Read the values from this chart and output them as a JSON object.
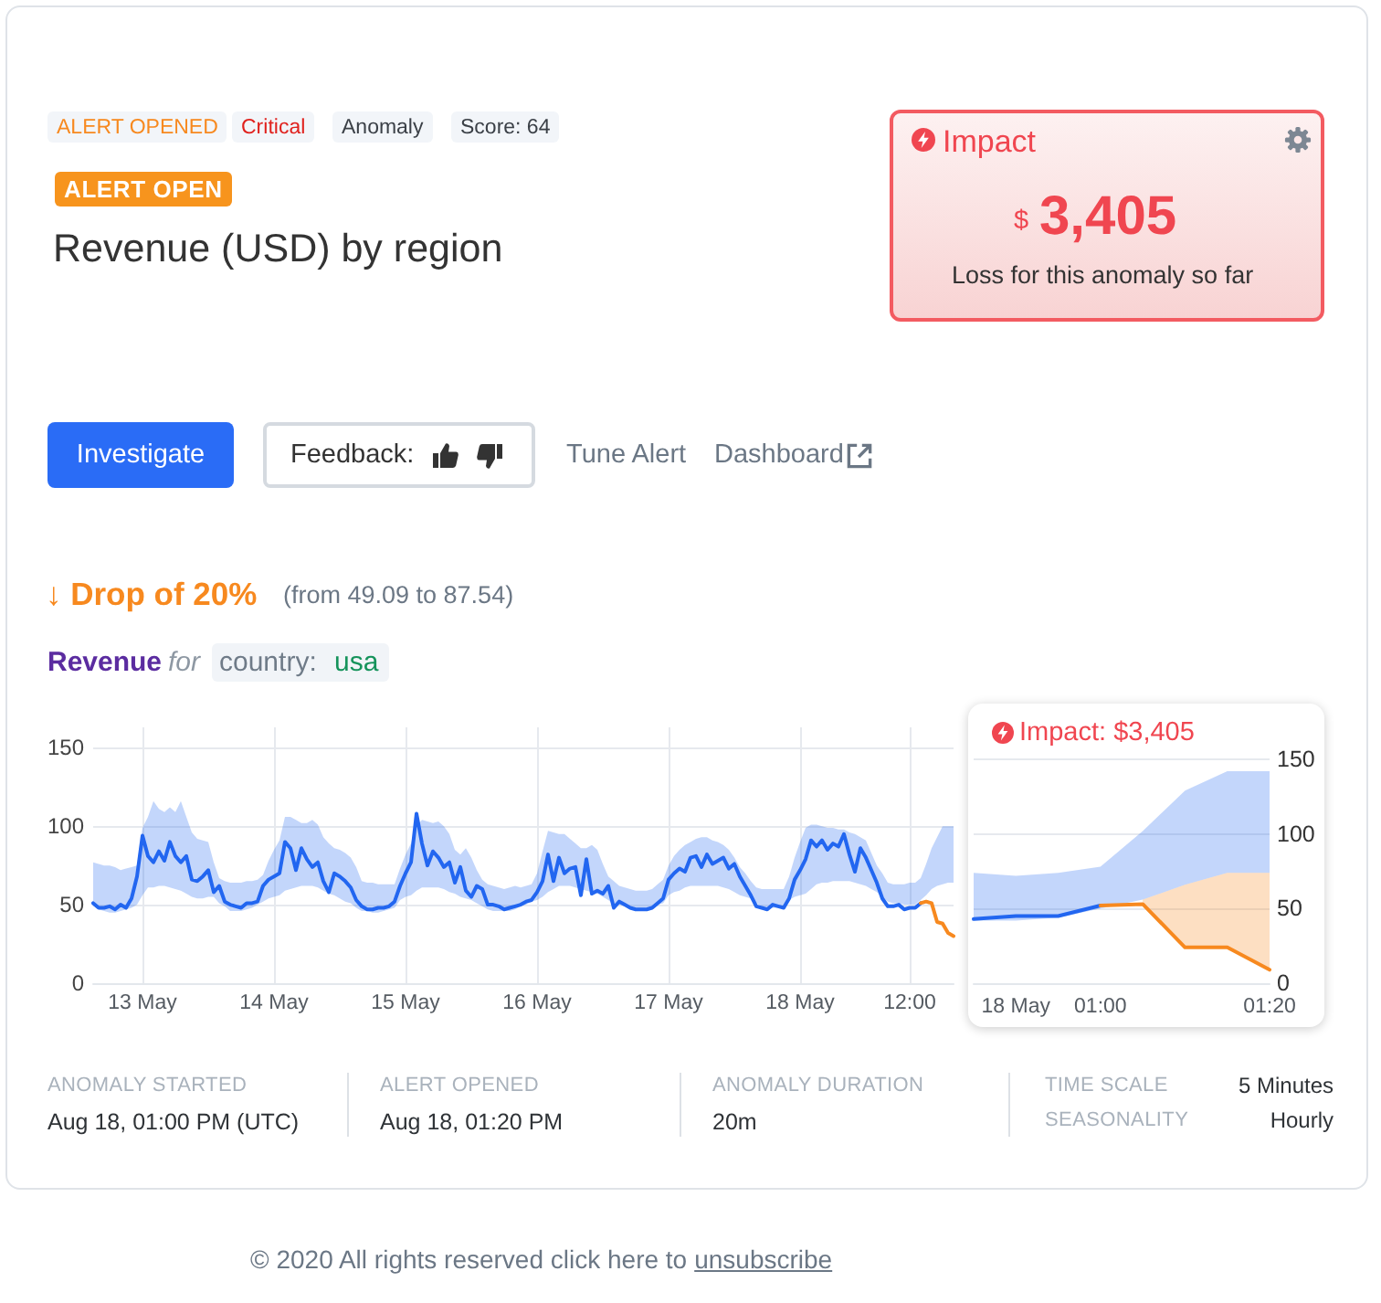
{
  "chart_data": [
    {
      "type": "line",
      "title": "Revenue (USD) by region",
      "annotations": [
        "ALERT OPENED",
        "Critical",
        "Anomaly",
        "Score: 64",
        "ALERT OPEN",
        "Impact",
        "$",
        "3,405",
        "Loss for this anomaly so far",
        "Investigate",
        "Feedback:",
        "Tune Alert",
        "Dashboard",
        "↓ Drop of 20%",
        "(from 49.09 to 87.54)",
        "Revenue",
        "for",
        "country:",
        "usa",
        "ANOMALY STARTED",
        "Aug 18, 01:00 PM (UTC)",
        "ALERT OPENED",
        "Aug 18, 01:20 PM",
        "ANOMALY DURATION",
        "20m",
        "TIME SCALE",
        "5 Minutes",
        "SEASONALITY",
        "Hourly",
        "© 2020 All rights reserved click here to",
        "unsubscribe"
      ],
      "categories": [
        null,
        null,
        null,
        null,
        null,
        null,
        null,
        null,
        null,
        "13 May",
        null,
        null,
        null,
        null,
        null,
        null,
        null,
        null,
        null,
        null,
        null,
        null,
        null,
        null,
        null,
        null,
        null,
        null,
        null,
        null,
        null,
        null,
        null,
        "14 May",
        null,
        null,
        null,
        null,
        null,
        null,
        null,
        null,
        null,
        null,
        null,
        null,
        null,
        null,
        null,
        null,
        null,
        null,
        null,
        null,
        null,
        null,
        null,
        "15 May",
        null,
        null,
        null,
        null,
        null,
        null,
        null,
        null,
        null,
        null,
        null,
        null,
        null,
        null,
        null,
        null,
        null,
        null,
        null,
        null,
        null,
        null,
        null,
        "16 May",
        null,
        null,
        null,
        null,
        null,
        null,
        null,
        null,
        null,
        null,
        null,
        null,
        null,
        null,
        null,
        null,
        null,
        null,
        null,
        null,
        null,
        null,
        null,
        "17 May",
        null,
        null,
        null,
        null,
        null,
        null,
        null,
        null,
        null,
        null,
        null,
        null,
        null,
        null,
        null,
        null,
        null,
        null,
        null,
        null,
        null,
        null,
        null,
        "18 May",
        null,
        null,
        null,
        null,
        null,
        null,
        null,
        null,
        null,
        null,
        null,
        null,
        null,
        null,
        null,
        null,
        null,
        null,
        null,
        "12:00",
        null,
        null,
        null,
        null,
        null,
        null,
        null,
        null
      ],
      "ylim": [
        0,
        163
      ],
      "yticks": [
        0,
        50,
        100,
        150
      ],
      "grid": true,
      "series": [
        {
          "color": "#2266f0",
          "values": [
            51,
            48,
            48,
            49,
            47,
            50,
            48,
            54,
            68,
            94,
            81,
            77,
            84,
            78,
            90,
            81,
            77,
            81,
            66,
            65,
            68,
            72,
            58,
            62,
            52,
            50,
            49,
            48,
            51,
            51,
            52,
            62,
            66,
            68,
            70,
            90,
            86,
            72,
            86,
            79,
            74,
            77,
            65,
            58,
            70,
            68,
            65,
            61,
            53,
            49,
            47,
            47,
            48,
            48,
            49,
            52,
            62,
            70,
            77,
            108,
            89,
            75,
            84,
            80,
            74,
            77,
            64,
            74,
            59,
            55,
            62,
            60,
            50,
            50,
            49,
            47,
            48,
            49,
            50,
            52,
            53,
            58,
            65,
            82,
            65,
            80,
            70,
            73,
            74,
            56,
            79,
            57,
            59,
            57,
            62,
            48,
            52,
            50,
            48,
            47,
            47,
            47,
            48,
            51,
            54,
            66,
            70,
            73,
            71,
            80,
            81,
            74,
            82,
            76,
            78,
            80,
            73,
            76,
            68,
            62,
            56,
            49,
            48,
            47,
            50,
            49,
            48,
            54,
            66,
            72,
            79,
            91,
            87,
            91,
            85,
            89,
            87,
            95,
            82,
            71,
            86,
            80,
            72,
            64,
            54,
            49,
            49,
            50,
            47,
            48,
            48,
            51,
            null,
            null,
            null,
            null,
            null,
            null
          ],
          "lower": [
            50,
            47,
            46,
            45,
            45,
            46,
            47,
            48,
            50,
            56,
            61,
            61,
            62,
            62,
            61,
            60,
            59,
            57,
            55,
            54,
            54,
            55,
            55,
            51,
            49,
            46,
            46,
            46,
            47,
            48,
            50,
            52,
            54,
            55,
            56,
            59,
            60,
            61,
            62,
            62,
            62,
            61,
            59,
            57,
            56,
            54,
            52,
            51,
            48,
            46,
            46,
            45,
            45,
            46,
            47,
            48,
            53,
            55,
            56,
            59,
            61,
            61,
            61,
            61,
            60,
            58,
            57,
            55,
            54,
            53,
            51,
            49,
            47,
            46,
            46,
            46,
            46,
            47,
            49,
            50,
            52,
            53,
            55,
            58,
            60,
            62,
            62,
            62,
            61,
            60,
            59,
            58,
            57,
            55,
            53,
            50,
            50,
            49,
            49,
            48,
            47,
            48,
            48,
            50,
            51,
            56,
            58,
            59,
            61,
            62,
            62,
            62,
            62,
            62,
            62,
            61,
            60,
            58,
            56,
            55,
            54,
            51,
            49,
            48,
            48,
            48,
            49,
            53,
            55,
            56,
            57,
            60,
            63,
            64,
            64,
            65,
            65,
            65,
            65,
            64,
            63,
            62,
            60,
            58,
            55,
            52,
            51,
            51,
            50,
            50,
            50,
            53,
            56,
            60,
            62,
            63,
            64,
            64
          ],
          "upper": [
            77,
            76,
            75,
            75,
            74,
            72,
            73,
            74,
            75,
            99,
            106,
            116,
            111,
            109,
            112,
            109,
            116,
            106,
            96,
            92,
            91,
            90,
            77,
            67,
            65,
            64,
            64,
            64,
            65,
            65,
            66,
            69,
            78,
            85,
            91,
            106,
            106,
            104,
            102,
            102,
            104,
            101,
            93,
            89,
            86,
            85,
            83,
            80,
            74,
            65,
            64,
            64,
            63,
            63,
            63,
            63,
            73,
            82,
            89,
            100,
            104,
            103,
            102,
            103,
            100,
            95,
            85,
            82,
            86,
            80,
            72,
            66,
            63,
            62,
            61,
            60,
            61,
            62,
            61,
            62,
            63,
            70,
            84,
            97,
            96,
            95,
            95,
            92,
            89,
            86,
            86,
            88,
            85,
            76,
            68,
            65,
            62,
            61,
            60,
            59,
            59,
            59,
            60,
            63,
            66,
            75,
            81,
            85,
            88,
            90,
            92,
            93,
            93,
            91,
            90,
            88,
            85,
            80,
            74,
            70,
            65,
            61,
            60,
            60,
            60,
            60,
            60,
            68,
            80,
            90,
            99,
            101,
            101,
            100,
            99,
            99,
            98,
            98,
            96,
            95,
            93,
            91,
            83,
            75,
            70,
            64,
            63,
            63,
            63,
            64,
            64,
            67,
            76,
            86,
            93,
            100,
            100,
            100
          ]
        },
        {
          "color": "#f7891f",
          "values": [
            null,
            null,
            null,
            null,
            null,
            null,
            null,
            null,
            null,
            null,
            null,
            null,
            null,
            null,
            null,
            null,
            null,
            null,
            null,
            null,
            null,
            null,
            null,
            null,
            null,
            null,
            null,
            null,
            null,
            null,
            null,
            null,
            null,
            null,
            null,
            null,
            null,
            null,
            null,
            null,
            null,
            null,
            null,
            null,
            null,
            null,
            null,
            null,
            null,
            null,
            null,
            null,
            null,
            null,
            null,
            null,
            null,
            null,
            null,
            null,
            null,
            null,
            null,
            null,
            null,
            null,
            null,
            null,
            null,
            null,
            null,
            null,
            null,
            null,
            null,
            null,
            null,
            null,
            null,
            null,
            null,
            null,
            null,
            null,
            null,
            null,
            null,
            null,
            null,
            null,
            null,
            null,
            null,
            null,
            null,
            null,
            null,
            null,
            null,
            null,
            null,
            null,
            null,
            null,
            null,
            null,
            null,
            null,
            null,
            null,
            null,
            null,
            null,
            null,
            null,
            null,
            null,
            null,
            null,
            null,
            null,
            null,
            null,
            null,
            null,
            null,
            null,
            null,
            null,
            null,
            null,
            null,
            null,
            null,
            null,
            null,
            null,
            null,
            null,
            null,
            null,
            null,
            null,
            null,
            null,
            null,
            null,
            null,
            null,
            null,
            null,
            51,
            52,
            51,
            39,
            38,
            32,
            30
          ]
        }
      ]
    },
    {
      "type": "line",
      "title": "Impact: $3,405",
      "categories": [
        null,
        "18 May",
        null,
        "01:00",
        null,
        null,
        null,
        "01:20"
      ],
      "ylim": [
        0,
        150
      ],
      "yticks": [
        0,
        50,
        100,
        150
      ],
      "grid": "y",
      "series": [
        {
          "color": "#2266f0",
          "values": [
            43,
            45,
            45,
            52,
            null,
            null,
            null,
            null
          ],
          "lower": [
            42,
            42,
            44,
            50,
            56,
            66,
            74,
            74
          ],
          "upper": [
            74,
            72,
            74,
            78,
            102,
            129,
            142,
            142
          ]
        },
        {
          "color": "#f7891f",
          "values": [
            null,
            null,
            null,
            52,
            53,
            24,
            24,
            9
          ],
          "lower": [
            null,
            null,
            null,
            null,
            53,
            24,
            24,
            9
          ],
          "upper": [
            null,
            null,
            null,
            null,
            56,
            66,
            74,
            74
          ]
        }
      ]
    }
  ]
}
